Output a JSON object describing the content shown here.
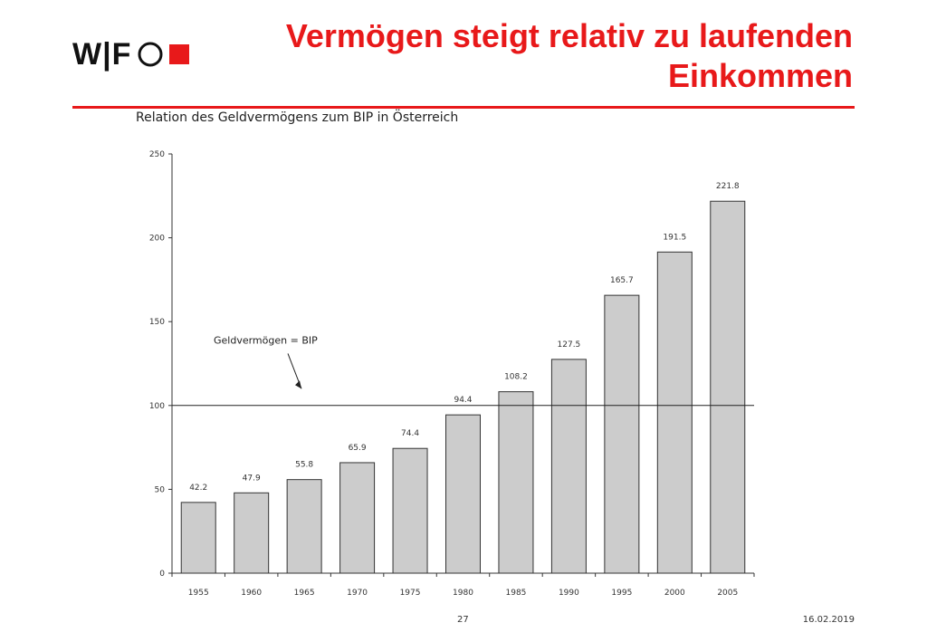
{
  "header": {
    "logo_text": "W|F",
    "title": "Vermögen steigt relativ zu laufenden Einkommen"
  },
  "colors": {
    "accent": "#e8191a",
    "bar_fill": "#cccccc",
    "bar_stroke": "#333333"
  },
  "chart_data": {
    "type": "bar",
    "title": "Relation des Geldvermögens zum BIP in Österreich",
    "xlabel": "",
    "ylabel": "",
    "categories": [
      "1955",
      "1960",
      "1965",
      "1970",
      "1975",
      "1980",
      "1985",
      "1990",
      "1995",
      "2000",
      "2005"
    ],
    "values": [
      42.2,
      47.9,
      55.8,
      65.9,
      74.4,
      94.4,
      108.2,
      127.5,
      165.7,
      191.5,
      221.8
    ],
    "data_labels": [
      "42.2",
      "47.9",
      "55.8",
      "65.9",
      "74.4",
      "94.4",
      "108.2",
      "127.5",
      "165.7",
      "191.5",
      "221.8"
    ],
    "ylim": [
      0,
      250
    ],
    "yticks": [
      0,
      50,
      100,
      150,
      200,
      250
    ],
    "grid": false,
    "reference_line": {
      "value": 100,
      "label": "Geldvermögen = BIP"
    }
  },
  "footer": {
    "page": "27",
    "date": "16.02.2019"
  }
}
